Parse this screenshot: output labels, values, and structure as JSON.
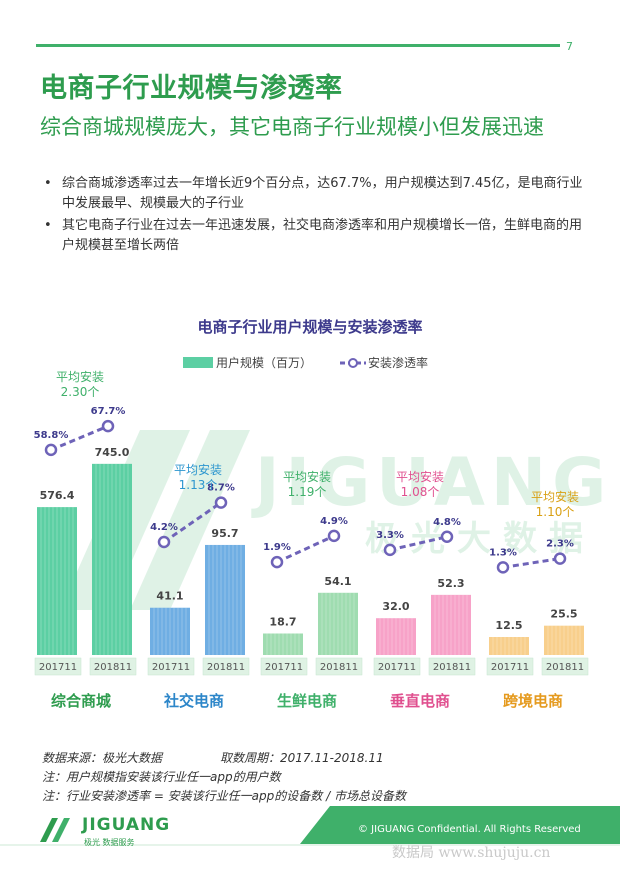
{
  "page": {
    "number": "7",
    "title": "电商子行业规模与渗透率",
    "subtitle": "综合商城规模庞大，其它电商子行业规模小但发展迅速",
    "bullets": [
      "综合商城渗透率过去一年增长近9个百分点，达67.7%，用户规模达到7.45亿，是电商行业中发展最早、规模最大的子行业",
      "其它电商子行业在过去一年迅速发展，社交电商渗透率和用户规模增长一倍，生鲜电商的用户规模甚至增长两倍"
    ]
  },
  "chart_data": {
    "type": "bar",
    "title": "电商子行业用户规模与安装渗透率",
    "legend": {
      "bar": "用户规模（百万）",
      "line": "安装渗透率",
      "placement": "top-center"
    },
    "categories": [
      "201711",
      "201811"
    ],
    "groups": [
      {
        "name": "综合商城",
        "color": "#5ccfa3",
        "label_color": "#2e9c4e",
        "avg_label": "平均安装\n2.30个",
        "avg_color": "#3fb06a",
        "bars": [
          576.4,
          745.0
        ],
        "bar_labels": [
          "576.4",
          "745.0"
        ],
        "rates": [
          58.8,
          67.7
        ],
        "rate_labels": [
          "58.8%",
          "67.7%"
        ]
      },
      {
        "name": "社交电商",
        "color": "#6faee3",
        "label_color": "#2c86c9",
        "avg_label": "平均安装\n1.13个",
        "avg_color": "#2c96cf",
        "bars": [
          41.1,
          95.7
        ],
        "bar_labels": [
          "41.1",
          "95.7"
        ],
        "rates": [
          4.2,
          8.7
        ],
        "rate_labels": [
          "4.2%",
          "8.7%"
        ]
      },
      {
        "name": "生鲜电商",
        "color": "#9fdcb0",
        "label_color": "#3fb06a",
        "avg_label": "平均安装\n1.19个",
        "avg_color": "#3fb06a",
        "bars": [
          18.7,
          54.1
        ],
        "bar_labels": [
          "18.7",
          "54.1"
        ],
        "rates": [
          1.9,
          4.9
        ],
        "rate_labels": [
          "1.9%",
          "4.9%"
        ]
      },
      {
        "name": "垂直电商",
        "color": "#f7a2c8",
        "label_color": "#e0508f",
        "avg_label": "平均安装\n1.08个",
        "avg_color": "#e0508f",
        "bars": [
          32.0,
          52.3
        ],
        "bar_labels": [
          "32.0",
          "52.3"
        ],
        "rates": [
          3.3,
          4.8
        ],
        "rate_labels": [
          "3.3%",
          "4.8%"
        ]
      },
      {
        "name": "跨境电商",
        "color": "#f8cf8c",
        "label_color": "#e59a1e",
        "avg_label": "平均安装\n1.10个",
        "avg_color": "#d9a014",
        "bars": [
          12.5,
          25.5
        ],
        "bar_labels": [
          "12.5",
          "25.5"
        ],
        "rates": [
          1.3,
          2.3
        ],
        "rate_labels": [
          "1.3%",
          "2.3%"
        ]
      }
    ],
    "line_color": "#6e63b8",
    "grid": false
  },
  "watermark": {
    "text": "JIGUANG",
    "cn": "极光大数据"
  },
  "notes": {
    "source": "数据来源：极光大数据",
    "period": "取数周期：2017.11-2018.11",
    "note1": "注：用户规模指安装该行业任一app的用户数",
    "note2": "注：行业安装渗透率 = 安装该行业任一app的设备数 / 市场总设备数"
  },
  "footer": {
    "brand": "JIGUANG",
    "brand_sub": "极光 数据服务",
    "copyright": "© JIGUANG Confidential. All Rights Reserved",
    "site": "数据局 www.shujuju.cn",
    "band_color": "#3fb06a"
  }
}
